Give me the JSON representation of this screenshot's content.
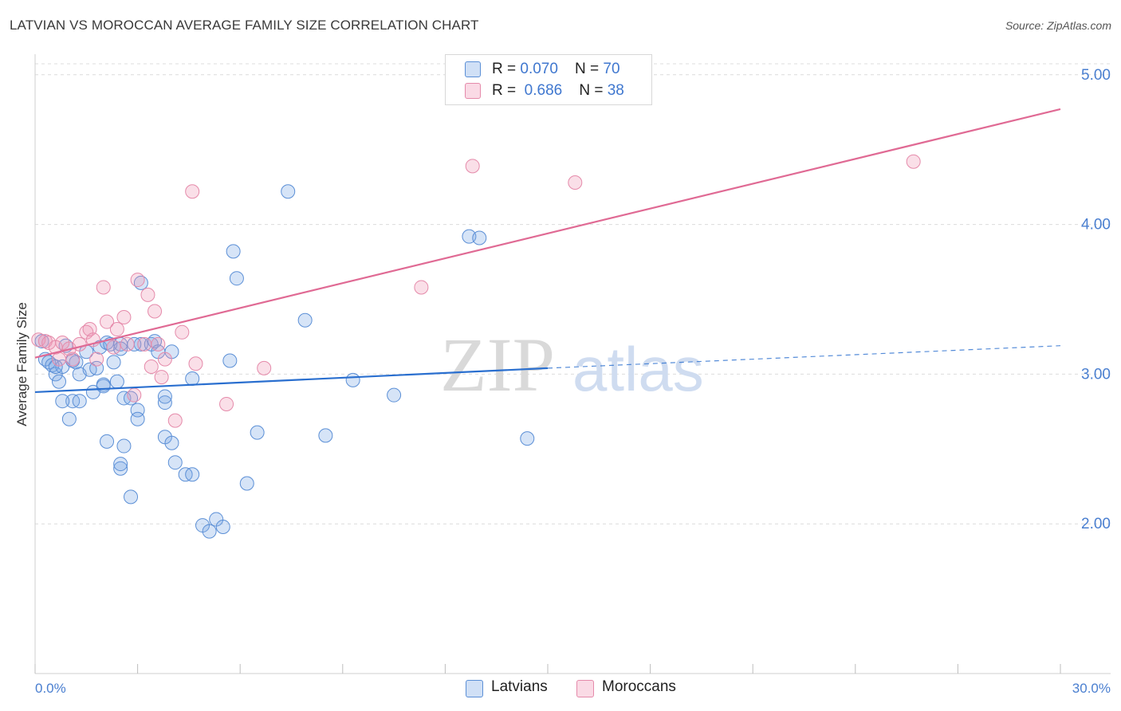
{
  "title": "LATVIAN VS MOROCCAN AVERAGE FAMILY SIZE CORRELATION CHART",
  "source": "Source: ZipAtlas.com",
  "watermark": {
    "zip": "ZIP",
    "atlas": "atlas"
  },
  "colors": {
    "latvians_fill": "rgba(120,165,230,0.30)",
    "latvians_stroke": "#5b8fd6",
    "latvians_line": "#2a6fcf",
    "moroccans_fill": "rgba(240,150,180,0.30)",
    "moroccans_stroke": "#e58aaa",
    "moroccans_line": "#e06a94",
    "tick": "#4a7fd0",
    "grid": "#dcdcdc"
  },
  "legend": {
    "rows": [
      {
        "r_label": "R = ",
        "r_value": "0.070",
        "n_label": "N = ",
        "n_value": "70"
      },
      {
        "r_label": "R = ",
        "r_value": "0.686",
        "n_label": "N = ",
        "n_value": "38"
      }
    ]
  },
  "bottom_legend": [
    "Latvians",
    "Moroccans"
  ],
  "chart_data": {
    "type": "scatter",
    "title": "LATVIAN VS MOROCCAN AVERAGE FAMILY SIZE CORRELATION CHART",
    "xlabel": "",
    "ylabel": "Average Family Size",
    "xlim": [
      0,
      30
    ],
    "ylim": [
      1.0,
      5.1
    ],
    "x_tick_labels": [
      "0.0%",
      "30.0%"
    ],
    "y_ticks": [
      2,
      3,
      4,
      5
    ],
    "y_tick_labels": [
      "2.00",
      "3.00",
      "4.00",
      "5.00"
    ],
    "grid": true,
    "series": [
      {
        "name": "Latvians",
        "r": 0.07,
        "n": 70,
        "trend": {
          "x0": 0,
          "y0": 2.88,
          "x1": 15,
          "y1": 3.04,
          "dashed_to_x": 30,
          "dashed_to_y": 3.19
        },
        "points": [
          [
            0.2,
            3.22
          ],
          [
            0.3,
            3.1
          ],
          [
            0.4,
            3.08
          ],
          [
            0.5,
            3.06
          ],
          [
            0.6,
            3.0
          ],
          [
            0.7,
            2.95
          ],
          [
            0.8,
            3.05
          ],
          [
            0.9,
            3.19
          ],
          [
            1.0,
            2.7
          ],
          [
            1.1,
            2.82
          ],
          [
            1.2,
            3.08
          ],
          [
            1.3,
            3.0
          ],
          [
            1.3,
            2.82
          ],
          [
            1.5,
            3.15
          ],
          [
            1.6,
            3.03
          ],
          [
            1.7,
            2.88
          ],
          [
            1.8,
            3.04
          ],
          [
            1.9,
            3.18
          ],
          [
            2.0,
            2.93
          ],
          [
            2.1,
            3.21
          ],
          [
            2.2,
            3.2
          ],
          [
            2.0,
            2.92
          ],
          [
            2.5,
            3.2
          ],
          [
            2.3,
            3.08
          ],
          [
            2.1,
            2.55
          ],
          [
            2.4,
            2.95
          ],
          [
            2.5,
            3.17
          ],
          [
            2.6,
            2.84
          ],
          [
            2.5,
            2.37
          ],
          [
            2.5,
            2.4
          ],
          [
            2.6,
            2.52
          ],
          [
            2.8,
            2.84
          ],
          [
            2.8,
            2.18
          ],
          [
            3.0,
            2.76
          ],
          [
            3.0,
            2.7
          ],
          [
            3.1,
            3.61
          ],
          [
            3.1,
            3.2
          ],
          [
            3.4,
            3.2
          ],
          [
            3.5,
            3.22
          ],
          [
            3.6,
            3.15
          ],
          [
            3.8,
            2.81
          ],
          [
            3.8,
            2.85
          ],
          [
            3.8,
            2.58
          ],
          [
            4.0,
            3.15
          ],
          [
            4.0,
            2.54
          ],
          [
            4.1,
            2.41
          ],
          [
            4.4,
            2.33
          ],
          [
            4.6,
            2.33
          ],
          [
            4.6,
            2.97
          ],
          [
            4.9,
            1.99
          ],
          [
            5.1,
            1.95
          ],
          [
            5.3,
            2.03
          ],
          [
            5.5,
            1.98
          ],
          [
            5.7,
            3.09
          ],
          [
            5.8,
            3.82
          ],
          [
            5.9,
            3.64
          ],
          [
            6.2,
            2.27
          ],
          [
            6.5,
            2.61
          ],
          [
            7.4,
            4.22
          ],
          [
            7.9,
            3.36
          ],
          [
            8.5,
            2.59
          ],
          [
            9.3,
            2.96
          ],
          [
            10.5,
            2.86
          ],
          [
            12.7,
            3.92
          ],
          [
            13.0,
            3.91
          ],
          [
            14.4,
            2.57
          ],
          [
            0.6,
            3.05
          ],
          [
            1.1,
            3.09
          ],
          [
            0.8,
            2.82
          ],
          [
            2.9,
            3.2
          ]
        ]
      },
      {
        "name": "Moroccans",
        "r": 0.686,
        "n": 38,
        "trend": {
          "x0": 0,
          "y0": 3.11,
          "x1": 30,
          "y1": 4.77
        },
        "points": [
          [
            0.1,
            3.23
          ],
          [
            0.3,
            3.22
          ],
          [
            0.4,
            3.21
          ],
          [
            0.6,
            3.18
          ],
          [
            0.7,
            3.1
          ],
          [
            0.8,
            3.21
          ],
          [
            1.0,
            3.17
          ],
          [
            1.1,
            3.1
          ],
          [
            1.3,
            3.2
          ],
          [
            1.5,
            3.28
          ],
          [
            1.6,
            3.3
          ],
          [
            1.8,
            3.1
          ],
          [
            1.7,
            3.23
          ],
          [
            2.0,
            3.58
          ],
          [
            2.1,
            3.35
          ],
          [
            2.3,
            3.18
          ],
          [
            2.4,
            3.3
          ],
          [
            2.6,
            3.38
          ],
          [
            2.7,
            3.2
          ],
          [
            3.0,
            3.63
          ],
          [
            3.2,
            3.2
          ],
          [
            3.3,
            3.53
          ],
          [
            3.4,
            3.05
          ],
          [
            3.5,
            3.42
          ],
          [
            3.6,
            3.2
          ],
          [
            3.7,
            2.98
          ],
          [
            3.8,
            3.1
          ],
          [
            4.1,
            2.69
          ],
          [
            4.3,
            3.28
          ],
          [
            4.6,
            4.22
          ],
          [
            4.7,
            3.07
          ],
          [
            5.6,
            2.8
          ],
          [
            6.7,
            3.04
          ],
          [
            11.3,
            3.58
          ],
          [
            12.8,
            4.39
          ],
          [
            15.8,
            4.28
          ],
          [
            25.7,
            4.42
          ],
          [
            2.9,
            2.86
          ]
        ]
      }
    ]
  }
}
